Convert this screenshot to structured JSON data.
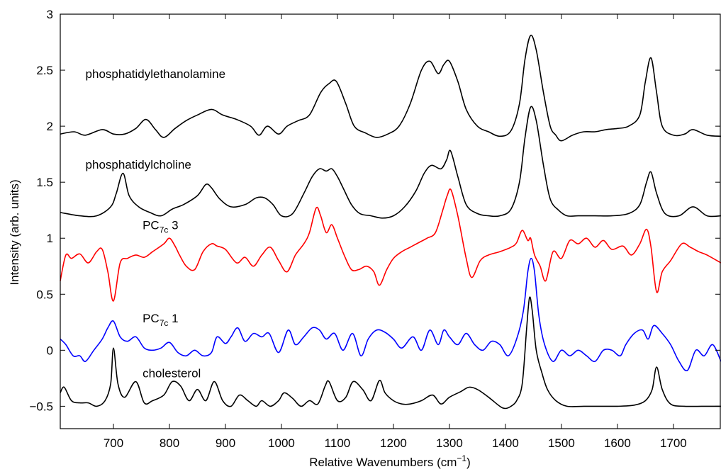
{
  "chart_data": {
    "type": "line",
    "xlabel": "Relative Wavenumbers (cm",
    "xlabel_sup": "−1",
    "xlabel_end": ")",
    "ylabel": "Intensity (arb. units)",
    "xlim": [
      605,
      1785
    ],
    "ylim": [
      -0.7,
      3.0
    ],
    "xticks": [
      700,
      800,
      900,
      1000,
      1100,
      1200,
      1300,
      1400,
      1500,
      1600,
      1700
    ],
    "xtick_labels": [
      "700",
      "800",
      "900",
      "1000",
      "1100",
      "1200",
      "1300",
      "1400",
      "1500",
      "1600",
      "1700"
    ],
    "yticks": [
      -0.5,
      0,
      0.5,
      1,
      1.5,
      2,
      2.5,
      3
    ],
    "ytick_labels": [
      "−0.5",
      "0",
      "0.5",
      "1",
      "1.5",
      "2",
      "2.5",
      "3"
    ],
    "grid": false,
    "series": [
      {
        "name": "phosphatidylethanolamine",
        "label_main": "phosphatidylethanolamine",
        "label_sub": "",
        "label_tail": "",
        "label_at": [
          650,
          2.43
        ],
        "color": "#000000",
        "x": [
          605,
          630,
          650,
          680,
          700,
          720,
          740,
          758,
          775,
          790,
          810,
          830,
          850,
          875,
          895,
          920,
          945,
          960,
          975,
          995,
          1010,
          1030,
          1050,
          1070,
          1085,
          1098,
          1115,
          1130,
          1150,
          1170,
          1190,
          1210,
          1230,
          1250,
          1265,
          1280,
          1290,
          1300,
          1315,
          1330,
          1350,
          1370,
          1390,
          1410,
          1425,
          1435,
          1445,
          1455,
          1468,
          1480,
          1490,
          1500,
          1520,
          1540,
          1560,
          1580,
          1600,
          1620,
          1640,
          1650,
          1660,
          1670,
          1680,
          1700,
          1720,
          1735,
          1760,
          1785
        ],
        "y": [
          1.93,
          1.95,
          1.92,
          1.97,
          1.93,
          1.93,
          1.98,
          2.06,
          1.97,
          1.9,
          1.98,
          2.05,
          2.1,
          2.15,
          2.1,
          2.06,
          2.0,
          1.92,
          2.0,
          1.93,
          2.0,
          2.05,
          2.1,
          2.3,
          2.38,
          2.4,
          2.2,
          2.0,
          1.94,
          1.9,
          1.93,
          2.0,
          2.2,
          2.5,
          2.58,
          2.47,
          2.55,
          2.58,
          2.4,
          2.15,
          2.0,
          1.95,
          1.91,
          1.96,
          2.2,
          2.6,
          2.81,
          2.68,
          2.3,
          2.0,
          1.92,
          1.87,
          1.92,
          1.95,
          1.95,
          1.97,
          1.98,
          2.0,
          2.1,
          2.4,
          2.61,
          2.3,
          2.0,
          1.92,
          1.93,
          1.97,
          1.92,
          1.91
        ]
      },
      {
        "name": "phosphatidylcholine",
        "label_main": "phosphatidylcholine",
        "label_sub": "",
        "label_tail": "",
        "label_at": [
          650,
          1.62
        ],
        "color": "#000000",
        "x": [
          605,
          640,
          670,
          695,
          705,
          717,
          728,
          745,
          765,
          785,
          805,
          825,
          850,
          865,
          875,
          890,
          910,
          935,
          955,
          970,
          985,
          1000,
          1020,
          1040,
          1055,
          1068,
          1080,
          1090,
          1100,
          1110,
          1125,
          1140,
          1160,
          1180,
          1200,
          1220,
          1240,
          1255,
          1268,
          1285,
          1295,
          1302,
          1315,
          1330,
          1350,
          1370,
          1390,
          1410,
          1425,
          1435,
          1445,
          1455,
          1468,
          1480,
          1495,
          1510,
          1530,
          1560,
          1590,
          1620,
          1640,
          1652,
          1660,
          1670,
          1685,
          1710,
          1735,
          1760,
          1785
        ],
        "y": [
          1.23,
          1.2,
          1.2,
          1.28,
          1.4,
          1.58,
          1.38,
          1.28,
          1.23,
          1.2,
          1.26,
          1.3,
          1.38,
          1.48,
          1.45,
          1.35,
          1.28,
          1.3,
          1.36,
          1.36,
          1.3,
          1.2,
          1.22,
          1.4,
          1.55,
          1.62,
          1.6,
          1.62,
          1.55,
          1.45,
          1.3,
          1.22,
          1.2,
          1.18,
          1.2,
          1.28,
          1.42,
          1.58,
          1.65,
          1.62,
          1.7,
          1.78,
          1.55,
          1.3,
          1.22,
          1.2,
          1.2,
          1.26,
          1.5,
          1.9,
          2.17,
          2.05,
          1.65,
          1.35,
          1.25,
          1.2,
          1.2,
          1.2,
          1.2,
          1.22,
          1.3,
          1.5,
          1.59,
          1.4,
          1.22,
          1.2,
          1.28,
          1.2,
          1.2
        ]
      },
      {
        "name": "PC7c 3",
        "label_main": "PC",
        "label_sub": "7c",
        "label_tail": " 3",
        "label_at": [
          752,
          1.08
        ],
        "color": "#ff0000",
        "x": [
          605,
          615,
          625,
          640,
          655,
          670,
          680,
          690,
          700,
          712,
          725,
          740,
          755,
          770,
          790,
          800,
          810,
          818,
          830,
          845,
          860,
          875,
          885,
          900,
          920,
          935,
          950,
          965,
          980,
          995,
          1010,
          1025,
          1040,
          1050,
          1062,
          1070,
          1080,
          1090,
          1100,
          1112,
          1125,
          1138,
          1152,
          1165,
          1175,
          1188,
          1200,
          1215,
          1230,
          1245,
          1260,
          1275,
          1288,
          1296,
          1303,
          1315,
          1330,
          1340,
          1355,
          1370,
          1390,
          1410,
          1420,
          1430,
          1440,
          1445,
          1452,
          1462,
          1472,
          1485,
          1500,
          1515,
          1530,
          1545,
          1560,
          1575,
          1590,
          1610,
          1625,
          1640,
          1652,
          1660,
          1670,
          1680,
          1695,
          1715,
          1730,
          1745,
          1760,
          1785
        ],
        "y": [
          0.62,
          0.85,
          0.82,
          0.86,
          0.78,
          0.88,
          0.9,
          0.7,
          0.44,
          0.78,
          0.82,
          0.85,
          0.83,
          0.88,
          0.95,
          1.0,
          0.93,
          0.85,
          0.75,
          0.72,
          0.88,
          0.95,
          0.93,
          0.9,
          0.78,
          0.83,
          0.75,
          0.85,
          0.92,
          0.8,
          0.7,
          0.85,
          0.95,
          1.05,
          1.27,
          1.2,
          1.05,
          1.12,
          1.0,
          0.85,
          0.72,
          0.72,
          0.75,
          0.7,
          0.58,
          0.72,
          0.82,
          0.88,
          0.92,
          0.96,
          1.0,
          1.05,
          1.25,
          1.38,
          1.43,
          1.2,
          0.82,
          0.65,
          0.8,
          0.85,
          0.88,
          0.92,
          0.96,
          1.07,
          0.98,
          1.0,
          0.85,
          0.75,
          0.62,
          0.88,
          0.82,
          0.98,
          0.95,
          1.0,
          0.92,
          0.98,
          0.9,
          0.93,
          0.85,
          0.95,
          1.08,
          0.92,
          0.52,
          0.7,
          0.8,
          0.95,
          0.92,
          0.88,
          0.85,
          0.78
        ]
      },
      {
        "name": "PC7c 1",
        "label_main": "PC",
        "label_sub": "7c",
        "label_tail": " 1",
        "label_at": [
          752,
          0.25
        ],
        "color": "#0000ff",
        "x": [
          605,
          615,
          628,
          640,
          650,
          665,
          680,
          690,
          700,
          712,
          725,
          740,
          755,
          770,
          785,
          800,
          815,
          830,
          845,
          860,
          875,
          885,
          900,
          910,
          922,
          935,
          950,
          965,
          978,
          995,
          1012,
          1025,
          1040,
          1055,
          1068,
          1080,
          1095,
          1110,
          1127,
          1142,
          1155,
          1170,
          1185,
          1200,
          1215,
          1235,
          1250,
          1265,
          1280,
          1290,
          1300,
          1315,
          1330,
          1345,
          1360,
          1375,
          1390,
          1405,
          1420,
          1432,
          1440,
          1446,
          1452,
          1460,
          1470,
          1485,
          1500,
          1515,
          1530,
          1545,
          1560,
          1575,
          1590,
          1605,
          1615,
          1630,
          1645,
          1655,
          1665,
          1680,
          1695,
          1710,
          1725,
          1740,
          1755,
          1770,
          1785
        ],
        "y": [
          0.1,
          0.05,
          -0.05,
          -0.05,
          -0.1,
          0.0,
          0.1,
          0.2,
          0.26,
          0.12,
          0.08,
          0.12,
          0.02,
          0.0,
          0.02,
          0.07,
          -0.02,
          -0.05,
          0.0,
          -0.05,
          -0.02,
          0.12,
          0.06,
          0.12,
          0.2,
          0.08,
          0.15,
          0.12,
          0.15,
          -0.02,
          0.18,
          0.05,
          0.12,
          0.2,
          0.18,
          0.1,
          0.15,
          0.0,
          0.15,
          -0.05,
          0.1,
          0.18,
          0.16,
          0.1,
          0.02,
          0.12,
          0.0,
          0.18,
          0.05,
          0.18,
          0.12,
          0.05,
          0.15,
          0.05,
          0.0,
          0.08,
          0.05,
          -0.05,
          0.1,
          0.35,
          0.7,
          0.82,
          0.7,
          0.3,
          0.05,
          -0.1,
          0.0,
          -0.05,
          0.0,
          -0.05,
          -0.1,
          0.0,
          0.0,
          -0.05,
          0.05,
          0.15,
          0.18,
          0.1,
          0.22,
          0.15,
          0.05,
          -0.1,
          -0.18,
          0.0,
          -0.05,
          0.05,
          -0.1
        ]
      },
      {
        "name": "cholesterol",
        "label_main": "cholesterol",
        "label_sub": "",
        "label_tail": "",
        "label_at": [
          752,
          -0.24
        ],
        "color": "#000000",
        "x": [
          605,
          612,
          625,
          640,
          655,
          670,
          685,
          695,
          700,
          708,
          720,
          740,
          755,
          770,
          790,
          805,
          820,
          835,
          850,
          865,
          880,
          895,
          910,
          925,
          940,
          955,
          965,
          980,
          995,
          1005,
          1020,
          1035,
          1050,
          1065,
          1078,
          1085,
          1100,
          1115,
          1128,
          1145,
          1160,
          1175,
          1185,
          1200,
          1215,
          1230,
          1250,
          1270,
          1285,
          1300,
          1320,
          1335,
          1350,
          1370,
          1390,
          1400,
          1410,
          1420,
          1430,
          1438,
          1443,
          1448,
          1455,
          1465,
          1475,
          1490,
          1510,
          1540,
          1570,
          1600,
          1630,
          1650,
          1662,
          1670,
          1680,
          1695,
          1720,
          1750,
          1785
        ],
        "y": [
          -0.38,
          -0.33,
          -0.45,
          -0.47,
          -0.47,
          -0.5,
          -0.45,
          -0.3,
          0.02,
          -0.3,
          -0.42,
          -0.28,
          -0.47,
          -0.45,
          -0.4,
          -0.28,
          -0.32,
          -0.45,
          -0.35,
          -0.45,
          -0.28,
          -0.45,
          -0.5,
          -0.4,
          -0.45,
          -0.5,
          -0.45,
          -0.5,
          -0.45,
          -0.38,
          -0.43,
          -0.5,
          -0.45,
          -0.48,
          -0.32,
          -0.28,
          -0.45,
          -0.42,
          -0.28,
          -0.35,
          -0.45,
          -0.27,
          -0.38,
          -0.45,
          -0.48,
          -0.48,
          -0.45,
          -0.4,
          -0.48,
          -0.42,
          -0.37,
          -0.33,
          -0.35,
          -0.42,
          -0.5,
          -0.52,
          -0.5,
          -0.45,
          -0.3,
          0.2,
          0.47,
          0.35,
          0.0,
          -0.2,
          -0.35,
          -0.45,
          -0.5,
          -0.5,
          -0.5,
          -0.5,
          -0.49,
          -0.45,
          -0.35,
          -0.15,
          -0.35,
          -0.48,
          -0.5,
          -0.5,
          -0.5
        ]
      }
    ]
  }
}
